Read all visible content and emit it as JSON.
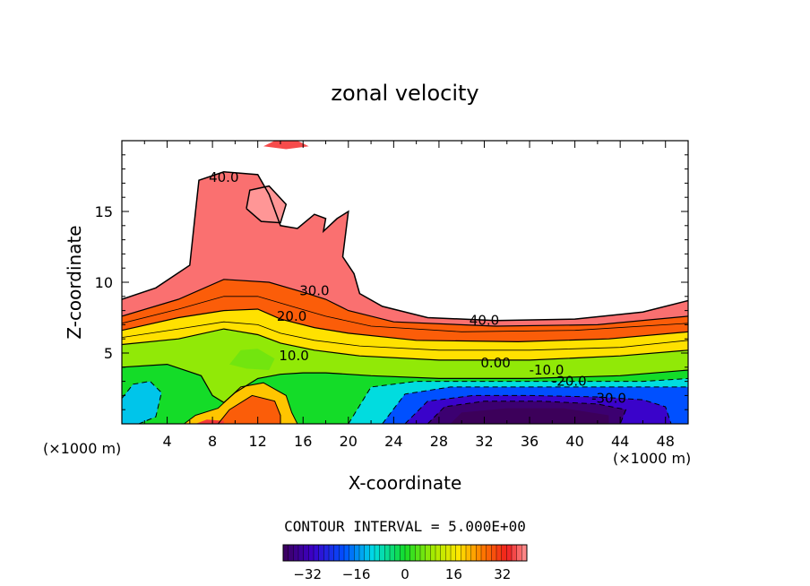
{
  "chart_data": {
    "type": "heatmap",
    "title": "zonal velocity",
    "xlabel": "X-coordinate",
    "ylabel": "Z-coordinate",
    "x_unit_label": "(×1000 m)",
    "y_unit_label": "(×1000 m)",
    "xlim": [
      0,
      50
    ],
    "ylim": [
      0,
      20
    ],
    "x_ticks": [
      4,
      8,
      12,
      16,
      20,
      24,
      28,
      32,
      36,
      40,
      44,
      48
    ],
    "y_ticks": [
      5,
      10,
      15
    ],
    "contour_interval_text": "CONTOUR INTERVAL = 5.000E+00",
    "contour_interval": 5.0,
    "contour_labels": [
      {
        "text": "40.0",
        "x": 9.0,
        "z": 17.4
      },
      {
        "text": "30.0",
        "x": 17.0,
        "z": 9.4
      },
      {
        "text": "20.0",
        "x": 15.0,
        "z": 7.6
      },
      {
        "text": "10.0",
        "x": 15.2,
        "z": 4.8
      },
      {
        "text": "40.0",
        "x": 32.0,
        "z": 7.3
      },
      {
        "text": "0.00",
        "x": 33.0,
        "z": 4.3
      },
      {
        "text": "-10.0",
        "x": 37.5,
        "z": 3.8
      },
      {
        "text": "-20.0",
        "x": 39.5,
        "z": 3.0
      },
      {
        "text": "-30.0",
        "x": 43.0,
        "z": 1.8
      }
    ],
    "colorbar": {
      "min": -40,
      "max": 40,
      "ticks": [
        -32,
        -16,
        0,
        16,
        32
      ],
      "tick_labels": [
        "−32",
        "−16",
        "0",
        "16",
        "32"
      ]
    }
  }
}
